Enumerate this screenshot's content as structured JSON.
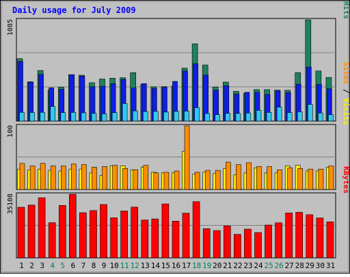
{
  "chart_data": {
    "type": "bar",
    "title": "Daily usage for July 2009",
    "categories": [
      "1",
      "2",
      "3",
      "4",
      "5",
      "6",
      "7",
      "8",
      "9",
      "10",
      "11",
      "12",
      "13",
      "14",
      "15",
      "16",
      "17",
      "18",
      "19",
      "20",
      "21",
      "22",
      "23",
      "24",
      "25",
      "26",
      "27",
      "28",
      "29",
      "30",
      "31"
    ],
    "weekend_days": [
      4,
      5,
      11,
      12,
      18,
      19,
      25,
      26
    ],
    "panels": [
      {
        "id": "hits",
        "ymax_label": "1085",
        "ylim": [
          0,
          1085
        ],
        "series": [
          {
            "name": "Hits",
            "color": "#1e8060",
            "values": [
              669,
              421,
              542,
              331,
              363,
              497,
              491,
              411,
              451,
              460,
              464,
              519,
              393,
              367,
              369,
              374,
              567,
              828,
              601,
              365,
              418,
              319,
              297,
              337,
              337,
              331,
              330,
              519,
              1085,
              537,
              468
            ]
          },
          {
            "name": "Files",
            "color": "#0f1ee6",
            "values": [
              639,
              416,
              500,
              357,
              341,
              497,
              482,
              367,
              373,
              400,
              448,
              354,
              402,
              351,
              362,
              425,
              537,
              615,
              493,
              331,
              378,
              290,
              309,
              308,
              285,
              323,
              304,
              395,
              579,
              393,
              346
            ]
          },
          {
            "name": "Pages",
            "color": "#32c8f0",
            "values": [
              93,
              92,
              94,
              157,
              90,
              93,
              89,
              82,
              78,
              90,
              188,
              109,
              102,
              104,
              96,
              105,
              106,
              144,
              81,
              69,
              83,
              82,
              86,
              115,
              93,
              149,
              91,
              100,
              179,
              85,
              70
            ]
          }
        ],
        "axis_labels": [
          {
            "text": "Pages",
            "color": "#32c8f0"
          },
          {
            "text": " / ",
            "color": "#000000"
          },
          {
            "text": "Files",
            "color": "#0f1ee6"
          },
          {
            "text": " / ",
            "color": "#000000"
          },
          {
            "text": "Hits",
            "color": "#1e8060"
          }
        ]
      },
      {
        "id": "visits",
        "ymax_label": "100",
        "ylim": [
          0,
          100
        ],
        "series": [
          {
            "name": "Visits",
            "color": "#fff000",
            "values": [
              32,
              31,
              32,
              30,
              29,
              32,
              32,
              26,
              22,
              37,
              37,
              31,
              35,
              27,
              26,
              26,
              60,
              24,
              27,
              25,
              33,
              23,
              26,
              34,
              26,
              26,
              37,
              38,
              29,
              29,
              35
            ]
          },
          {
            "name": "Sites",
            "color": "#ff8c00",
            "values": [
              41,
              37,
              41,
              37,
              37,
              40,
              39,
              35,
              36,
              38,
              33,
              31,
              38,
              26,
              27,
              29,
              100,
              27,
              30,
              30,
              43,
              39,
              42,
              36,
              36,
              31,
              34,
              33,
              32,
              32,
              37
            ]
          }
        ],
        "axis_labels": [
          {
            "text": "Sites",
            "color": "#ff8c00"
          },
          {
            "text": " / ",
            "color": "#000000"
          },
          {
            "text": "Visits",
            "color": "#fff000"
          }
        ]
      },
      {
        "id": "kbytes",
        "ymax_label": "35108",
        "ylim": [
          0,
          35108
        ],
        "series": [
          {
            "name": "KBytes",
            "color": "#ff0000",
            "values": [
              27944,
              29159,
              33176,
              19389,
              28939,
              35108,
              24934,
              26142,
              29451,
              22116,
              25853,
              28009,
              20876,
              21495,
              29780,
              20270,
              24640,
              31021,
              16138,
              15075,
              17628,
              12931,
              15871,
              13957,
              18109,
              19319,
              24791,
              25151,
              23837,
              22016
            ]
          },
          {
            "name": "KBytes-tail",
            "color": "#ff0000",
            "values": [
              19870
            ]
          }
        ],
        "axis_labels": [
          {
            "text": "KBytes",
            "color": "#ff0000"
          }
        ]
      }
    ]
  },
  "colors": {
    "background": "#c0c0c0",
    "title": "#0000ff",
    "weekday_label": "#000000",
    "weekend_label": "#00805c",
    "grid": "#808080"
  }
}
